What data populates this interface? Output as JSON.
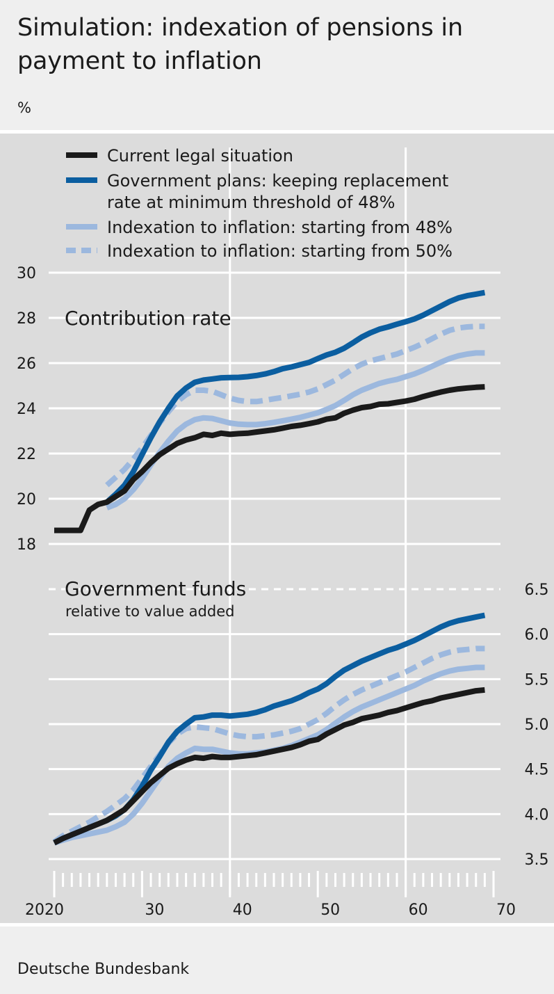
{
  "header": {
    "title": "Simulation: indexation of pensions in payment to inflation",
    "unit": "%"
  },
  "source": "Deutsche Bundesbank",
  "legend": {
    "items": [
      {
        "line1": "Current legal situation",
        "line2": ""
      },
      {
        "line1": "Government plans: keeping replacement",
        "line2": "rate at minimum threshold of 48%"
      },
      {
        "line1": "Indexation to inflation: starting from 48%",
        "line2": ""
      },
      {
        "line1": "Indexation to inflation: starting from 50%",
        "line2": ""
      }
    ]
  },
  "colors": {
    "current": "#1a1a1a",
    "government": "#0b5ea0",
    "infl48": "#9cb8de",
    "infl50": "#9cb8de",
    "grid": "#ffffff",
    "panel": "#dcdcdc"
  },
  "chart_data": [
    {
      "type": "line",
      "title": "Contribution rate",
      "subtitle": "",
      "ylim": [
        18,
        30
      ],
      "yticks": [
        18,
        20,
        22,
        24,
        26,
        28,
        30
      ],
      "xlim": [
        2020,
        2070
      ],
      "x": [
        2020,
        2023,
        2024,
        2025,
        2026,
        2027,
        2028,
        2029,
        2030,
        2031,
        2032,
        2033,
        2034,
        2035,
        2036,
        2037,
        2038,
        2039,
        2040,
        2041,
        2042,
        2043,
        2044,
        2045,
        2046,
        2047,
        2048,
        2049,
        2050,
        2051,
        2052,
        2053,
        2054,
        2055,
        2056,
        2057,
        2058,
        2059,
        2060,
        2061,
        2062,
        2063,
        2064,
        2065,
        2066,
        2067,
        2068,
        2069
      ],
      "series": [
        {
          "name": "Current legal situation",
          "style": "current",
          "values": [
            18.6,
            18.6,
            19.5,
            19.75,
            19.85,
            20.1,
            20.35,
            20.85,
            21.2,
            21.6,
            21.95,
            22.2,
            22.45,
            22.6,
            22.7,
            22.85,
            22.8,
            22.9,
            22.85,
            22.88,
            22.9,
            22.95,
            23.0,
            23.05,
            23.12,
            23.2,
            23.25,
            23.32,
            23.4,
            23.52,
            23.58,
            23.78,
            23.92,
            24.03,
            24.08,
            24.18,
            24.2,
            24.26,
            24.32,
            24.4,
            24.52,
            24.62,
            24.72,
            24.8,
            24.86,
            24.9,
            24.93,
            24.95
          ]
        },
        {
          "name": "Government plans: keeping replacement rate at minimum threshold of 48%",
          "style": "government",
          "values": [
            null,
            null,
            null,
            null,
            19.85,
            20.2,
            20.6,
            21.2,
            21.95,
            22.7,
            23.4,
            24.0,
            24.55,
            24.9,
            25.15,
            25.25,
            25.3,
            25.35,
            25.36,
            25.37,
            25.4,
            25.45,
            25.52,
            25.62,
            25.75,
            25.83,
            25.93,
            26.03,
            26.2,
            26.36,
            26.48,
            26.66,
            26.9,
            27.15,
            27.34,
            27.5,
            27.6,
            27.72,
            27.83,
            27.95,
            28.12,
            28.32,
            28.52,
            28.72,
            28.88,
            28.98,
            29.05,
            29.12
          ]
        },
        {
          "name": "Indexation to inflation: starting from 48%",
          "style": "infl48",
          "values": [
            null,
            null,
            null,
            null,
            19.6,
            19.75,
            20.0,
            20.4,
            20.9,
            21.5,
            22.05,
            22.55,
            23.0,
            23.3,
            23.5,
            23.58,
            23.55,
            23.45,
            23.35,
            23.3,
            23.28,
            23.28,
            23.32,
            23.38,
            23.45,
            23.52,
            23.6,
            23.7,
            23.8,
            23.95,
            24.12,
            24.35,
            24.6,
            24.8,
            24.95,
            25.1,
            25.2,
            25.28,
            25.4,
            25.52,
            25.68,
            25.86,
            26.04,
            26.2,
            26.32,
            26.4,
            26.45,
            26.45
          ]
        },
        {
          "name": "Indexation to inflation: starting from 50%",
          "style": "infl50",
          "values": [
            null,
            null,
            null,
            null,
            20.6,
            20.95,
            21.3,
            21.75,
            22.25,
            22.8,
            23.35,
            23.85,
            24.3,
            24.6,
            24.8,
            24.8,
            24.75,
            24.6,
            24.45,
            24.35,
            24.3,
            24.3,
            24.35,
            24.42,
            24.48,
            24.55,
            24.62,
            24.72,
            24.86,
            25.05,
            25.25,
            25.5,
            25.75,
            25.95,
            26.1,
            26.2,
            26.3,
            26.4,
            26.55,
            26.7,
            26.88,
            27.08,
            27.28,
            27.45,
            27.55,
            27.6,
            27.62,
            27.62
          ]
        }
      ]
    },
    {
      "type": "line",
      "title": "Government funds",
      "subtitle": "relative to value added",
      "ylim": [
        3.5,
        6.5
      ],
      "yticks": [
        3.5,
        4.0,
        4.5,
        5.0,
        5.5,
        6.0,
        6.5
      ],
      "yticklabels": [
        "3.5",
        "4.0",
        "4.5",
        "5.0",
        "5.5",
        "6.0",
        "6.5"
      ],
      "xlim": [
        2020,
        2070
      ],
      "xticks": [
        2020,
        2030,
        2040,
        2050,
        2060,
        2070
      ],
      "xticklabels": [
        "2020",
        "30",
        "40",
        "50",
        "60",
        "70"
      ],
      "x": [
        2020,
        2021,
        2022,
        2023,
        2024,
        2025,
        2026,
        2027,
        2028,
        2029,
        2030,
        2031,
        2032,
        2033,
        2034,
        2035,
        2036,
        2037,
        2038,
        2039,
        2040,
        2041,
        2042,
        2043,
        2044,
        2045,
        2046,
        2047,
        2048,
        2049,
        2050,
        2051,
        2052,
        2053,
        2054,
        2055,
        2056,
        2057,
        2058,
        2059,
        2060,
        2061,
        2062,
        2063,
        2064,
        2065,
        2066,
        2067,
        2068,
        2069
      ],
      "series": [
        {
          "name": "Current legal situation",
          "style": "current",
          "values": [
            3.68,
            3.73,
            3.77,
            3.81,
            3.85,
            3.89,
            3.93,
            3.99,
            4.05,
            4.15,
            4.25,
            4.35,
            4.43,
            4.51,
            4.56,
            4.6,
            4.63,
            4.62,
            4.64,
            4.63,
            4.63,
            4.64,
            4.65,
            4.66,
            4.68,
            4.7,
            4.72,
            4.74,
            4.77,
            4.81,
            4.83,
            4.89,
            4.94,
            4.99,
            5.02,
            5.06,
            5.08,
            5.1,
            5.13,
            5.15,
            5.18,
            5.21,
            5.24,
            5.26,
            5.29,
            5.31,
            5.33,
            5.35,
            5.37,
            5.38
          ]
        },
        {
          "name": "Government plans: keeping replacement rate at minimum threshold of 48%",
          "style": "government",
          "values": [
            3.68,
            3.73,
            3.77,
            3.81,
            3.85,
            3.89,
            3.93,
            3.98,
            4.05,
            4.16,
            4.31,
            4.49,
            4.64,
            4.8,
            4.92,
            5.0,
            5.07,
            5.08,
            5.1,
            5.1,
            5.09,
            5.1,
            5.11,
            5.13,
            5.16,
            5.2,
            5.23,
            5.26,
            5.3,
            5.35,
            5.39,
            5.45,
            5.53,
            5.6,
            5.65,
            5.7,
            5.74,
            5.78,
            5.82,
            5.85,
            5.89,
            5.93,
            5.98,
            6.03,
            6.08,
            6.12,
            6.15,
            6.17,
            6.19,
            6.21
          ]
        },
        {
          "name": "Indexation to inflation: starting from 48%",
          "style": "infl48",
          "values": [
            3.68,
            3.71,
            3.74,
            3.76,
            3.78,
            3.8,
            3.82,
            3.86,
            3.91,
            4.0,
            4.12,
            4.26,
            4.4,
            4.53,
            4.62,
            4.68,
            4.73,
            4.72,
            4.72,
            4.7,
            4.68,
            4.67,
            4.67,
            4.68,
            4.69,
            4.71,
            4.73,
            4.76,
            4.8,
            4.84,
            4.88,
            4.94,
            5.01,
            5.08,
            5.14,
            5.19,
            5.23,
            5.27,
            5.31,
            5.35,
            5.39,
            5.43,
            5.48,
            5.52,
            5.56,
            5.59,
            5.61,
            5.62,
            5.63,
            5.63
          ]
        },
        {
          "name": "Indexation to inflation: starting from 50%",
          "style": "infl50",
          "values": [
            3.69,
            3.76,
            3.81,
            3.86,
            3.91,
            3.97,
            4.03,
            4.1,
            4.17,
            4.27,
            4.4,
            4.53,
            4.66,
            4.79,
            4.89,
            4.95,
            4.97,
            4.96,
            4.95,
            4.92,
            4.89,
            4.87,
            4.86,
            4.86,
            4.87,
            4.88,
            4.9,
            4.92,
            4.95,
            5.0,
            5.05,
            5.12,
            5.2,
            5.27,
            5.33,
            5.38,
            5.42,
            5.46,
            5.5,
            5.54,
            5.58,
            5.63,
            5.68,
            5.73,
            5.77,
            5.8,
            5.82,
            5.83,
            5.84,
            5.84
          ]
        }
      ]
    }
  ]
}
